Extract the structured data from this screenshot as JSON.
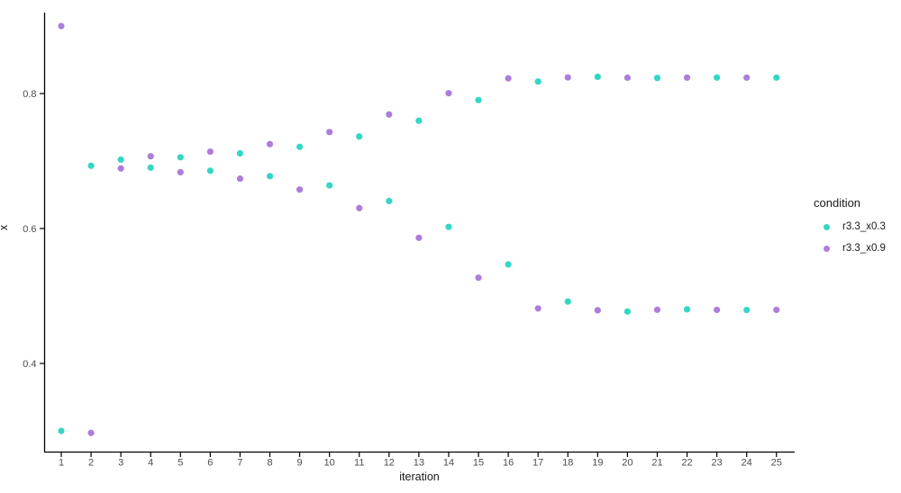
{
  "colors": {
    "background": "#ffffff",
    "axis_line": "#000000",
    "tick_label": "#4d4d4d",
    "title_text": "#1a1a1a",
    "series_teal": "#35d6c5",
    "series_purple": "#ad7ddb"
  },
  "chart_data": {
    "type": "scatter",
    "title": "",
    "xlabel": "iteration",
    "ylabel": "x",
    "legend_title": "condition",
    "legend_position": "right",
    "grid": false,
    "x_ticks": [
      1,
      2,
      3,
      4,
      5,
      6,
      7,
      8,
      9,
      10,
      11,
      12,
      13,
      14,
      15,
      16,
      17,
      18,
      19,
      20,
      21,
      22,
      23,
      24,
      25
    ],
    "y_ticks": [
      0.4,
      0.6,
      0.8
    ],
    "y_tick_labels": [
      "0.4",
      "0.6",
      "0.8"
    ],
    "x_range": [
      1,
      25
    ],
    "y_range_visible": [
      0.27,
      0.92
    ],
    "x": [
      1,
      2,
      3,
      4,
      5,
      6,
      7,
      8,
      9,
      10,
      11,
      12,
      13,
      14,
      15,
      16,
      17,
      18,
      19,
      20,
      21,
      22,
      23,
      24,
      25
    ],
    "series": [
      {
        "name": "r3.3_x0.3",
        "color": "#35d6c5",
        "values": [
          0.3,
          0.693,
          0.7021,
          0.6902,
          0.7056,
          0.6856,
          0.7114,
          0.6776,
          0.721,
          0.6639,
          0.7364,
          0.6407,
          0.7597,
          0.6024,
          0.7904,
          0.5467,
          0.8178,
          0.4917,
          0.8248,
          0.4769,
          0.8232,
          0.4802,
          0.8237,
          0.4792,
          0.8236
        ]
      },
      {
        "name": "r3.3_x0.9",
        "color": "#ad7ddb",
        "values": [
          0.9,
          0.297,
          0.689,
          0.7071,
          0.6834,
          0.7139,
          0.6739,
          0.7251,
          0.6577,
          0.7429,
          0.6303,
          0.769,
          0.5862,
          0.8005,
          0.5271,
          0.8226,
          0.4816,
          0.8239,
          0.4788,
          0.8235,
          0.4796,
          0.8236,
          0.4794,
          0.8236,
          0.4794
        ]
      }
    ]
  }
}
